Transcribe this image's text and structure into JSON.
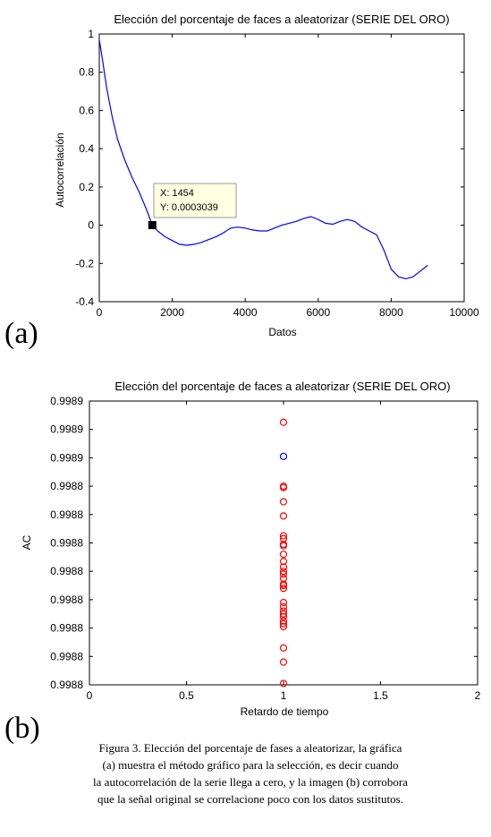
{
  "chart_data": [
    {
      "type": "line",
      "panel_label": "(a)",
      "title": "Elección del porcentaje de faces a aleatorizar (SERIE DEL ORO)",
      "xlabel": "Datos",
      "ylabel": "Autocorrelación",
      "xlim": [
        0,
        10000
      ],
      "ylim": [
        -0.4,
        1
      ],
      "xticks": [
        "0",
        "2000",
        "4000",
        "6000",
        "8000",
        "10000"
      ],
      "yticks": [
        "-0.4",
        "-0.2",
        "0",
        "0.2",
        "0.4",
        "0.6",
        "0.8",
        "1"
      ],
      "line_color": "#0000ff",
      "grid": false,
      "series": [
        {
          "x": [
            0,
            100,
            200,
            350,
            500,
            700,
            900,
            1100,
            1300,
            1454,
            1600,
            1800,
            2000,
            2200,
            2400,
            2600,
            2800,
            3000,
            3200,
            3400,
            3600,
            3800,
            4000,
            4200,
            4400,
            4600,
            4800,
            5000,
            5200,
            5400,
            5600,
            5800,
            6000,
            6200,
            6400,
            6600,
            6800,
            7000,
            7200,
            7400,
            7600,
            7800,
            8000,
            8200,
            8400,
            8600,
            8800,
            9000
          ],
          "y": [
            0.97,
            0.85,
            0.72,
            0.57,
            0.45,
            0.34,
            0.25,
            0.17,
            0.08,
            0.0003,
            -0.03,
            -0.06,
            -0.08,
            -0.1,
            -0.105,
            -0.1,
            -0.09,
            -0.075,
            -0.06,
            -0.04,
            -0.015,
            -0.01,
            -0.015,
            -0.025,
            -0.03,
            -0.03,
            -0.015,
            0.0,
            0.01,
            0.02,
            0.035,
            0.045,
            0.03,
            0.01,
            0.005,
            0.02,
            0.03,
            0.02,
            -0.01,
            -0.03,
            -0.05,
            -0.13,
            -0.23,
            -0.27,
            -0.28,
            -0.27,
            -0.24,
            -0.21
          ]
        }
      ],
      "datatip": {
        "x_label": "X: 1454",
        "y_label": "Y: 0.0003039",
        "x": 1454,
        "y": 0.0003039
      }
    },
    {
      "type": "scatter",
      "panel_label": "(b)",
      "title": "Elección del porcentaje de faces a aleatorizar (SERIE DEL ORO)",
      "xlabel": "Retardo de tiempo",
      "ylabel": "AC",
      "xlim": [
        0,
        2
      ],
      "ylim": [
        0,
        10
      ],
      "xticks": [
        "0",
        "0.5",
        "1",
        "1.5",
        "2"
      ],
      "yticks": [
        "0.9988",
        "0.9988",
        "0.9988",
        "0.9988",
        "0.9988",
        "0.9988",
        "0.9988",
        "0.9988",
        "0.9989",
        "0.9989",
        "0.9989"
      ],
      "note": "y values are positions on the 11 ticks (0 = bottom tick, 10 = top tick); tick labels all round to 0.9988 / 0.9989",
      "grid": false,
      "series": [
        {
          "color": "#ff0000",
          "x": [
            1,
            1,
            1,
            1,
            1,
            1,
            1,
            1,
            1,
            1,
            1,
            1,
            1,
            1,
            1,
            1,
            1,
            1,
            1,
            1,
            1,
            1,
            1,
            1,
            1,
            1,
            1,
            1,
            1
          ],
          "y": [
            9.25,
            7.0,
            6.95,
            6.45,
            5.95,
            5.25,
            5.15,
            4.95,
            4.9,
            4.6,
            4.35,
            4.15,
            4.0,
            3.9,
            3.75,
            3.55,
            3.5,
            3.4,
            2.9,
            2.75,
            2.6,
            2.5,
            2.4,
            2.25,
            2.15,
            2.05,
            1.3,
            0.8,
            0.05
          ]
        },
        {
          "color": "#0000ff",
          "x": [
            1
          ],
          "y": [
            8.05
          ]
        }
      ]
    }
  ],
  "caption": {
    "lines": [
      "Figura 3. Elección del porcentaje de fases a aleatorizar, la gráfica",
      "(a) muestra el método gráfico para la selección,  es decir cuando",
      "la autocorrelación de la serie llega a cero,  y la imagen (b) corrobora",
      "que la señal original se  correlacione poco con los datos sustitutos."
    ]
  }
}
